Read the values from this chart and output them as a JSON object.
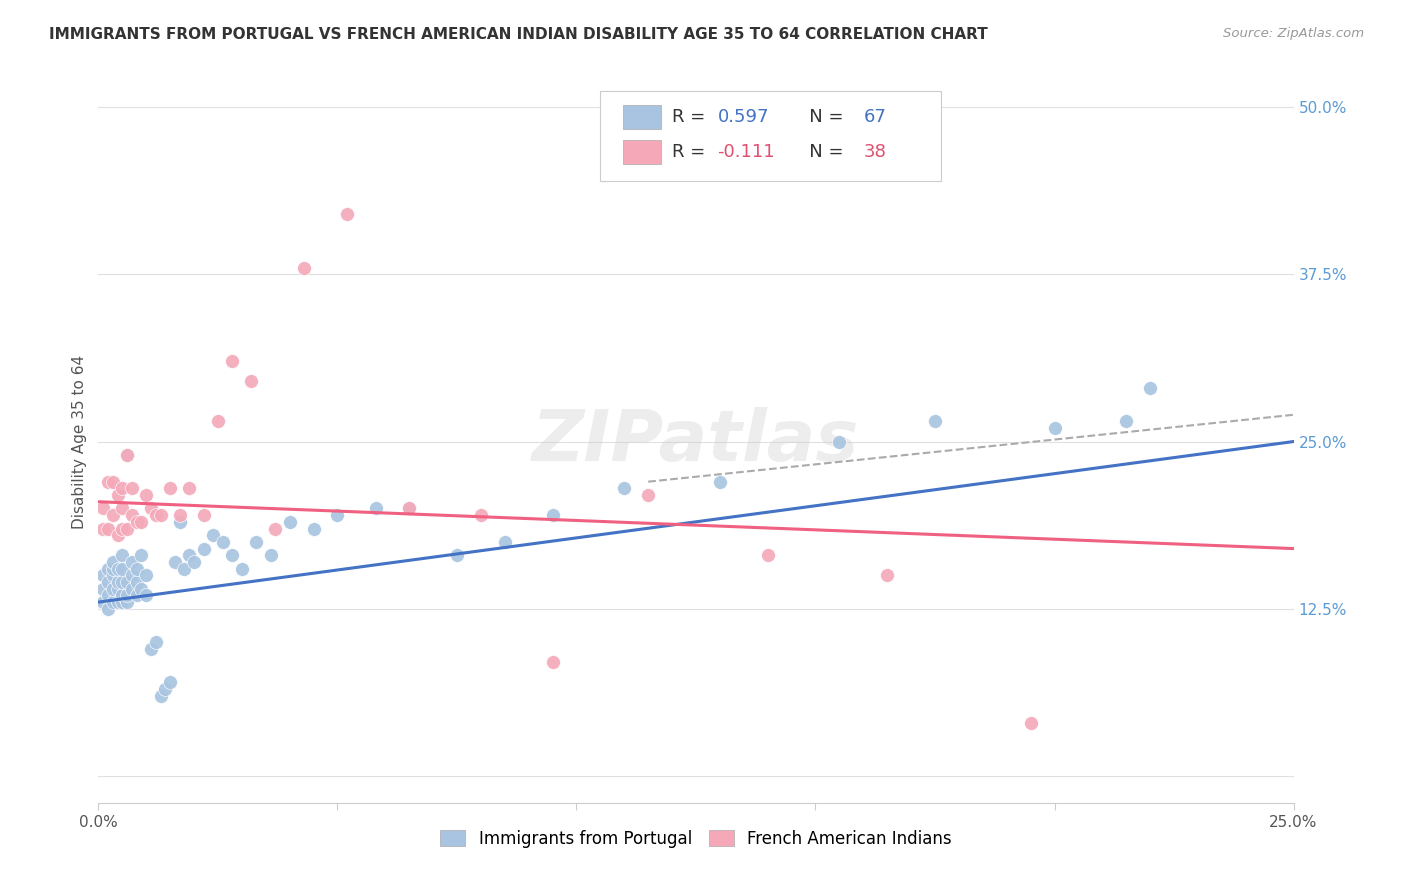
{
  "title": "IMMIGRANTS FROM PORTUGAL VS FRENCH AMERICAN INDIAN DISABILITY AGE 35 TO 64 CORRELATION CHART",
  "source": "Source: ZipAtlas.com",
  "ylabel": "Disability Age 35 to 64",
  "xlim": [
    0.0,
    0.25
  ],
  "ylim": [
    -0.02,
    0.52
  ],
  "xticks": [
    0.0,
    0.05,
    0.1,
    0.15,
    0.2,
    0.25
  ],
  "xticklabels": [
    "0.0%",
    "",
    "",
    "",
    "",
    "25.0%"
  ],
  "yticks_right": [
    0.0,
    0.125,
    0.25,
    0.375,
    0.5
  ],
  "ytick_right_labels": [
    "",
    "12.5%",
    "25.0%",
    "37.5%",
    "50.0%"
  ],
  "blue_R": 0.597,
  "blue_N": 67,
  "pink_R": -0.111,
  "pink_N": 38,
  "blue_color": "#a8c4e0",
  "pink_color": "#f4a8b8",
  "blue_line_color": "#4472c4",
  "pink_line_color": "#f06080",
  "dashed_line_color": "#aaaaaa",
  "background_color": "#ffffff",
  "grid_color": "#e0e0e0",
  "watermark": "ZIPatlas",
  "blue_scatter_x": [
    0.001,
    0.001,
    0.001,
    0.002,
    0.002,
    0.002,
    0.002,
    0.003,
    0.003,
    0.003,
    0.003,
    0.003,
    0.004,
    0.004,
    0.004,
    0.004,
    0.005,
    0.005,
    0.005,
    0.005,
    0.005,
    0.006,
    0.006,
    0.006,
    0.006,
    0.007,
    0.007,
    0.007,
    0.008,
    0.008,
    0.008,
    0.009,
    0.009,
    0.01,
    0.01,
    0.011,
    0.012,
    0.013,
    0.014,
    0.015,
    0.016,
    0.017,
    0.018,
    0.019,
    0.02,
    0.022,
    0.024,
    0.026,
    0.028,
    0.03,
    0.033,
    0.036,
    0.04,
    0.045,
    0.05,
    0.058,
    0.065,
    0.075,
    0.085,
    0.095,
    0.11,
    0.13,
    0.155,
    0.175,
    0.2,
    0.215,
    0.22
  ],
  "blue_scatter_y": [
    0.13,
    0.14,
    0.15,
    0.125,
    0.135,
    0.145,
    0.155,
    0.13,
    0.14,
    0.15,
    0.155,
    0.16,
    0.13,
    0.14,
    0.145,
    0.155,
    0.13,
    0.135,
    0.145,
    0.155,
    0.165,
    0.13,
    0.135,
    0.145,
    0.24,
    0.14,
    0.15,
    0.16,
    0.135,
    0.145,
    0.155,
    0.14,
    0.165,
    0.135,
    0.15,
    0.095,
    0.1,
    0.06,
    0.065,
    0.07,
    0.16,
    0.19,
    0.155,
    0.165,
    0.16,
    0.17,
    0.18,
    0.175,
    0.165,
    0.155,
    0.175,
    0.165,
    0.19,
    0.185,
    0.195,
    0.2,
    0.2,
    0.165,
    0.175,
    0.195,
    0.215,
    0.22,
    0.25,
    0.265,
    0.26,
    0.265,
    0.29
  ],
  "pink_scatter_x": [
    0.001,
    0.001,
    0.002,
    0.002,
    0.003,
    0.003,
    0.004,
    0.004,
    0.005,
    0.005,
    0.005,
    0.006,
    0.006,
    0.007,
    0.007,
    0.008,
    0.009,
    0.01,
    0.011,
    0.012,
    0.013,
    0.015,
    0.017,
    0.019,
    0.022,
    0.025,
    0.028,
    0.032,
    0.037,
    0.043,
    0.052,
    0.065,
    0.08,
    0.095,
    0.115,
    0.14,
    0.165,
    0.195
  ],
  "pink_scatter_y": [
    0.185,
    0.2,
    0.185,
    0.22,
    0.195,
    0.22,
    0.18,
    0.21,
    0.185,
    0.2,
    0.215,
    0.185,
    0.24,
    0.195,
    0.215,
    0.19,
    0.19,
    0.21,
    0.2,
    0.195,
    0.195,
    0.215,
    0.195,
    0.215,
    0.195,
    0.265,
    0.31,
    0.295,
    0.185,
    0.38,
    0.42,
    0.2,
    0.195,
    0.085,
    0.21,
    0.165,
    0.15,
    0.04
  ],
  "blue_trend_x": [
    0.0,
    0.25
  ],
  "blue_trend_y": [
    0.13,
    0.25
  ],
  "pink_trend_x": [
    0.0,
    0.25
  ],
  "pink_trend_y": [
    0.205,
    0.17
  ],
  "dash_trend_x": [
    0.115,
    0.25
  ],
  "dash_trend_y": [
    0.22,
    0.27
  ]
}
